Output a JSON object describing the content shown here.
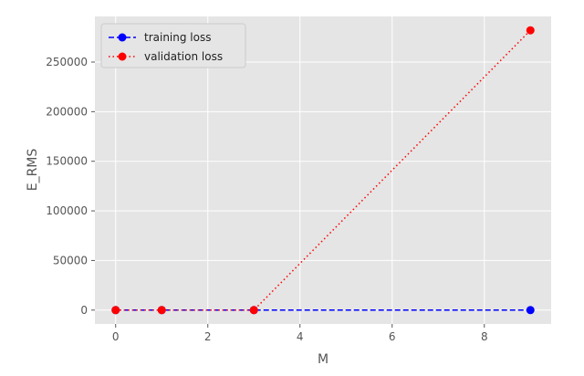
{
  "chart_data": {
    "type": "line",
    "title": "",
    "xlabel": "M",
    "ylabel": "E_RMS",
    "xlim": [
      -0.45,
      9.45
    ],
    "ylim": [
      -14000,
      296000
    ],
    "xticks": [
      0,
      2,
      4,
      6,
      8
    ],
    "yticks": [
      0,
      50000,
      100000,
      150000,
      200000,
      250000
    ],
    "grid": true,
    "legend_position": "top-left",
    "series": [
      {
        "name": "training loss",
        "color": "#0000ff",
        "linestyle": "dashed",
        "marker": "circle",
        "x": [
          0,
          1,
          3,
          9
        ],
        "y": [
          0.5,
          0.2,
          0.1,
          0.05
        ]
      },
      {
        "name": "validation loss",
        "color": "#ff0000",
        "linestyle": "dotted",
        "marker": "circle",
        "x": [
          0,
          1,
          3,
          9
        ],
        "y": [
          0.6,
          0.5,
          0.7,
          282000
        ]
      }
    ]
  }
}
